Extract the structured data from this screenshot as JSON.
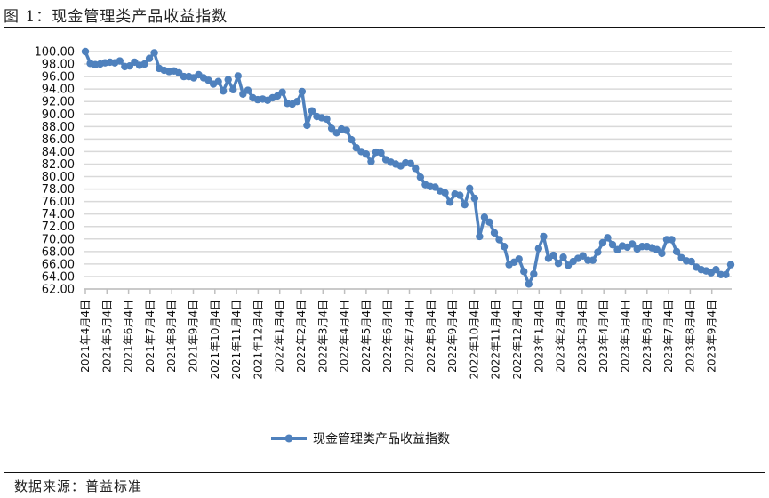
{
  "header": {
    "title": "图 1：现金管理类产品收益指数"
  },
  "footer": {
    "source": "数据来源：普益标准"
  },
  "colors": {
    "series": "#4F81BD",
    "grid": "#D9D9D9",
    "axis": "#BFBFBF"
  },
  "chart_data": {
    "type": "line",
    "title": "图 1：现金管理类产品收益指数",
    "xlabel": "",
    "ylabel": "",
    "ylim": [
      62,
      100
    ],
    "y_ticks": [
      "100.00",
      "98.00",
      "96.00",
      "94.00",
      "92.00",
      "90.00",
      "88.00",
      "86.00",
      "84.00",
      "82.00",
      "80.00",
      "78.00",
      "76.00",
      "74.00",
      "72.00",
      "70.00",
      "68.00",
      "66.00",
      "64.00",
      "62.00"
    ],
    "x_tick_labels": [
      "2021年4月4日",
      "2021年5月4日",
      "2021年6月4日",
      "2021年7月4日",
      "2021年8月4日",
      "2021年9月4日",
      "2021年10月4日",
      "2021年11月4日",
      "2021年12月4日",
      "2022年1月4日",
      "2022年2月4日",
      "2022年3月4日",
      "2022年4月4日",
      "2022年5月4日",
      "2022年6月4日",
      "2022年7月4日",
      "2022年8月4日",
      "2022年9月4日",
      "2022年10月4日",
      "2022年11月4日",
      "2022年12月4日",
      "2023年1月4日",
      "2023年2月4日",
      "2023年3月4日",
      "2023年4月4日",
      "2023年5月4日",
      "2023年6月4日",
      "2023年7月4日",
      "2023年8月4日",
      "2023年9月4日"
    ],
    "grid": true,
    "legend_position": "bottom",
    "series": [
      {
        "name": "现金管理类产品收益指数",
        "values": [
          100.0,
          98.1,
          97.9,
          98.0,
          98.2,
          98.3,
          98.2,
          98.5,
          97.6,
          97.7,
          98.3,
          97.8,
          98.0,
          98.9,
          99.8,
          97.3,
          97.0,
          96.8,
          96.9,
          96.6,
          96.0,
          96.0,
          95.8,
          96.3,
          95.8,
          95.4,
          94.8,
          95.2,
          93.7,
          95.5,
          93.9,
          96.1,
          93.2,
          93.8,
          92.6,
          92.3,
          92.4,
          92.2,
          92.6,
          92.9,
          93.5,
          91.7,
          91.6,
          92.0,
          93.6,
          88.2,
          90.5,
          89.6,
          89.4,
          89.2,
          87.7,
          87.0,
          87.6,
          87.4,
          85.9,
          84.6,
          84.0,
          83.6,
          82.4,
          83.9,
          83.8,
          82.7,
          82.3,
          82.0,
          81.7,
          82.2,
          82.1,
          81.3,
          79.9,
          78.7,
          78.4,
          78.3,
          77.7,
          77.4,
          75.9,
          77.2,
          77.0,
          75.5,
          78.1,
          76.5,
          70.4,
          73.5,
          72.7,
          71.0,
          69.9,
          68.8,
          65.9,
          66.3,
          66.8,
          64.8,
          62.8,
          64.4,
          68.5,
          70.4,
          66.9,
          67.4,
          66.1,
          67.1,
          65.8,
          66.4,
          66.9,
          67.3,
          66.6,
          66.6,
          67.9,
          69.4,
          70.2,
          69.1,
          68.3,
          68.9,
          68.7,
          69.2,
          68.4,
          68.8,
          68.8,
          68.6,
          68.3,
          67.7,
          69.9,
          69.9,
          68.0,
          67.0,
          66.5,
          66.4,
          65.5,
          65.1,
          64.9,
          64.6,
          65.1,
          64.3,
          64.3,
          65.9
        ]
      }
    ]
  },
  "legend": {
    "label": "现金管理类产品收益指数"
  }
}
